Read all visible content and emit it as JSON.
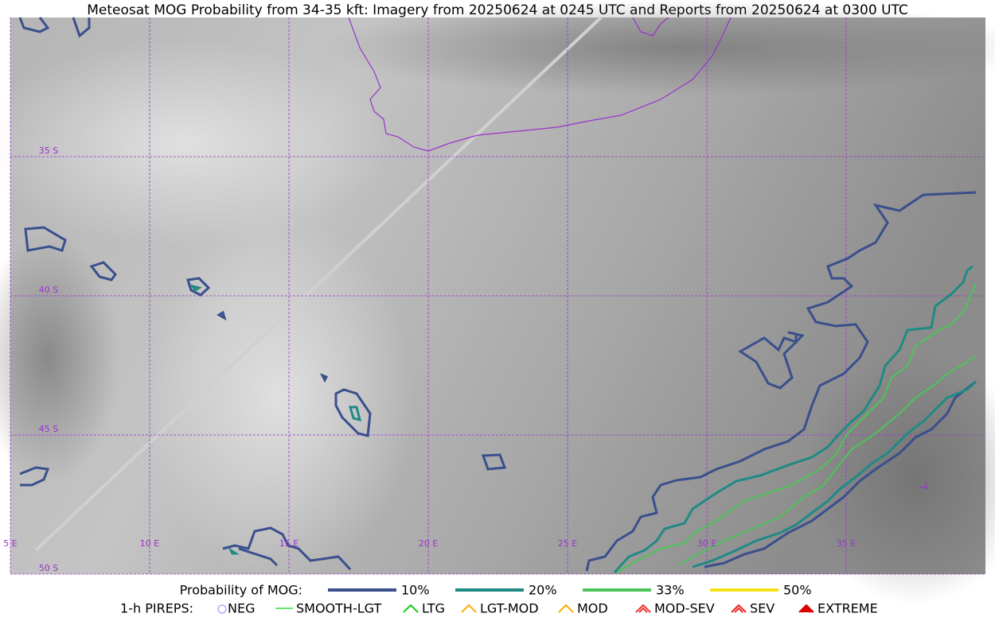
{
  "title": "Meteosat MOG Probability from 34-35 kft: Imagery from 20250624 at 0245 UTC and Reports from 20250624 at 0300 UTC",
  "map": {
    "lat_labels": [
      "35 S",
      "40 S",
      "45 S",
      "50 S"
    ],
    "lon_labels": [
      "5 E",
      "10 E",
      "15 E",
      "20 E",
      "25 E",
      "30 E",
      "35 E"
    ],
    "grid_color": "#9933cc",
    "coast_color": "#9933cc"
  },
  "legend": {
    "probability": {
      "title": "Probability of MOG:",
      "items": [
        {
          "label": "10%",
          "color": "#3a4f8c"
        },
        {
          "label": "20%",
          "color": "#1f8a84"
        },
        {
          "label": "33%",
          "color": "#4cc45a"
        },
        {
          "label": "50%",
          "color": "#f5e31a"
        }
      ]
    },
    "pireps": {
      "title": "1-h PIREPS:",
      "items": [
        {
          "label": "NEG",
          "color": "#aab0ff"
        },
        {
          "label": "SMOOTH-LGT",
          "color": "#33dd33"
        },
        {
          "label": "LTG",
          "color": "#11cc11"
        },
        {
          "label": "LGT-MOD",
          "color": "#f5b000"
        },
        {
          "label": "MOD",
          "color": "#f5b000"
        },
        {
          "label": "MOD-SEV",
          "color": "#ee3333"
        },
        {
          "label": "SEV",
          "color": "#ee2222"
        },
        {
          "label": "EXTREME",
          "color": "#dd0000"
        }
      ]
    }
  }
}
